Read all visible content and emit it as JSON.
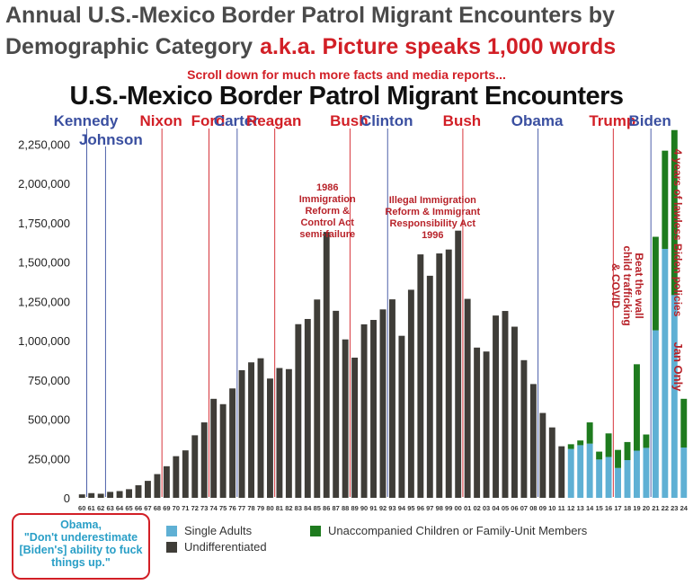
{
  "header": {
    "title_line1": "Annual U.S.-Mexico Border Patrol Migrant Encounters by",
    "title_line2": "Demographic Category",
    "tagline": "a.k.a. Picture speaks 1,000 words"
  },
  "scroll_note": "Scroll down for much more facts and media reports...",
  "callout": {
    "lines": [
      "Obama,",
      "\"Don't underestimate",
      "[Biden's] ability to fuck",
      "things up.\""
    ]
  },
  "colors": {
    "undifferentiated": "#3f3d38",
    "single_adults": "#5fb0d4",
    "children_family": "#1e7b1e",
    "democrat": "#3a4fa0",
    "republican": "#d21f26",
    "annotation": "#b8232a"
  },
  "chart_data": {
    "type": "bar",
    "title": "U.S.-Mexico Border Patrol Migrant Encounters",
    "xlabel": "",
    "ylabel": "",
    "ylim": [
      0,
      2350000
    ],
    "yticks": [
      0,
      250000,
      500000,
      750000,
      1000000,
      1250000,
      1500000,
      1750000,
      2000000,
      2250000
    ],
    "ytick_labels": [
      "0",
      "250,000",
      "500,000",
      "750,000",
      "1,000,000",
      "1,250,000",
      "1,500,000",
      "1,750,000",
      "2,000,000",
      "2,250,000"
    ],
    "categories": [
      "60",
      "61",
      "62",
      "63",
      "64",
      "65",
      "66",
      "67",
      "68",
      "69",
      "70",
      "71",
      "72",
      "73",
      "74",
      "75",
      "76",
      "77",
      "78",
      "79",
      "80",
      "81",
      "82",
      "83",
      "84",
      "85",
      "86",
      "87",
      "88",
      "89",
      "90",
      "91",
      "92",
      "93",
      "94",
      "95",
      "96",
      "97",
      "98",
      "99",
      "00",
      "01",
      "02",
      "03",
      "04",
      "05",
      "06",
      "07",
      "08",
      "09",
      "10",
      "11",
      "12",
      "13",
      "14",
      "15",
      "16",
      "17",
      "18",
      "19",
      "20",
      "21",
      "22",
      "23",
      "24"
    ],
    "series": [
      {
        "name": "Undifferentiated",
        "values": [
          22000,
          30000,
          26000,
          38000,
          43000,
          55000,
          80000,
          108000,
          151000,
          201000,
          265000,
          302000,
          398000,
          480000,
          630000,
          596000,
          696000,
          812000,
          862000,
          888000,
          759000,
          826000,
          819000,
          1105000,
          1138000,
          1262000,
          1692000,
          1190000,
          1008000,
          892000,
          1104000,
          1132000,
          1199000,
          1263000,
          1031000,
          1324000,
          1549000,
          1413000,
          1555000,
          1580000,
          1700000,
          1266000,
          956000,
          931000,
          1160000,
          1189000,
          1089000,
          876000,
          724000,
          540000,
          448000,
          328000,
          0,
          0,
          0,
          0,
          0,
          0,
          0,
          0,
          0,
          0,
          0,
          0,
          0
        ]
      },
      {
        "name": "Single Adults",
        "values": [
          0,
          0,
          0,
          0,
          0,
          0,
          0,
          0,
          0,
          0,
          0,
          0,
          0,
          0,
          0,
          0,
          0,
          0,
          0,
          0,
          0,
          0,
          0,
          0,
          0,
          0,
          0,
          0,
          0,
          0,
          0,
          0,
          0,
          0,
          0,
          0,
          0,
          0,
          0,
          0,
          0,
          0,
          0,
          0,
          0,
          0,
          0,
          0,
          0,
          0,
          0,
          0,
          311000,
          335000,
          345000,
          244000,
          260000,
          190000,
          240000,
          300000,
          318000,
          1066000,
          1584000,
          1290000,
          320000
        ]
      },
      {
        "name": "Unaccompanied Children or Family-Unit Members",
        "values": [
          0,
          0,
          0,
          0,
          0,
          0,
          0,
          0,
          0,
          0,
          0,
          0,
          0,
          0,
          0,
          0,
          0,
          0,
          0,
          0,
          0,
          0,
          0,
          0,
          0,
          0,
          0,
          0,
          0,
          0,
          0,
          0,
          0,
          0,
          0,
          0,
          0,
          0,
          0,
          0,
          0,
          0,
          0,
          0,
          0,
          0,
          0,
          0,
          0,
          0,
          0,
          0,
          30000,
          30000,
          135000,
          50000,
          150000,
          115000,
          115000,
          550000,
          85000,
          595000,
          625000,
          1050000,
          310000
        ]
      }
    ],
    "legend": {
      "placement": "bottom",
      "entries": [
        "Single Adults",
        "Undifferentiated",
        "Unaccompanied Children or Family-Unit Members"
      ]
    },
    "presidents": [
      {
        "name": "Kennedy",
        "party": "D",
        "start_year": "61",
        "row": 0
      },
      {
        "name": "Johnson",
        "party": "D",
        "start_year": "63",
        "row": 1
      },
      {
        "name": "Nixon",
        "party": "R",
        "start_year": "69",
        "row": 0
      },
      {
        "name": "Ford",
        "party": "R",
        "start_year": "74",
        "row": 0
      },
      {
        "name": "Carter",
        "party": "D",
        "start_year": "77",
        "row": 0
      },
      {
        "name": "Reagan",
        "party": "R",
        "start_year": "81",
        "row": 0
      },
      {
        "name": "Bush",
        "party": "R",
        "start_year": "89",
        "row": 0
      },
      {
        "name": "Clinton",
        "party": "D",
        "start_year": "93",
        "row": 0
      },
      {
        "name": "Bush",
        "party": "R",
        "start_year": "01",
        "row": 0
      },
      {
        "name": "Obama",
        "party": "D",
        "start_year": "09",
        "row": 0
      },
      {
        "name": "Trump",
        "party": "R",
        "start_year": "17",
        "row": 0
      },
      {
        "name": "Biden",
        "party": "D",
        "start_year": "21",
        "row": 0
      }
    ],
    "annotations": [
      {
        "lines": [
          "1986",
          "Immigration",
          "Reform &",
          "Control Act",
          "semi-failure"
        ],
        "year": "86"
      },
      {
        "lines": [
          "Illegal Immigration",
          "Reform & Immigrant",
          "Responsibility Act",
          "1996"
        ],
        "year": "97"
      },
      {
        "lines": [
          "Beat the wall",
          "child trafficking",
          "& COVID"
        ],
        "year": "18",
        "rotated": true
      },
      {
        "lines": [
          "4 years of lawless Biden policies"
        ],
        "year": "24",
        "rotated": true
      },
      {
        "lines": [
          "Jan Only"
        ],
        "year": "24",
        "rotated": true
      }
    ]
  }
}
